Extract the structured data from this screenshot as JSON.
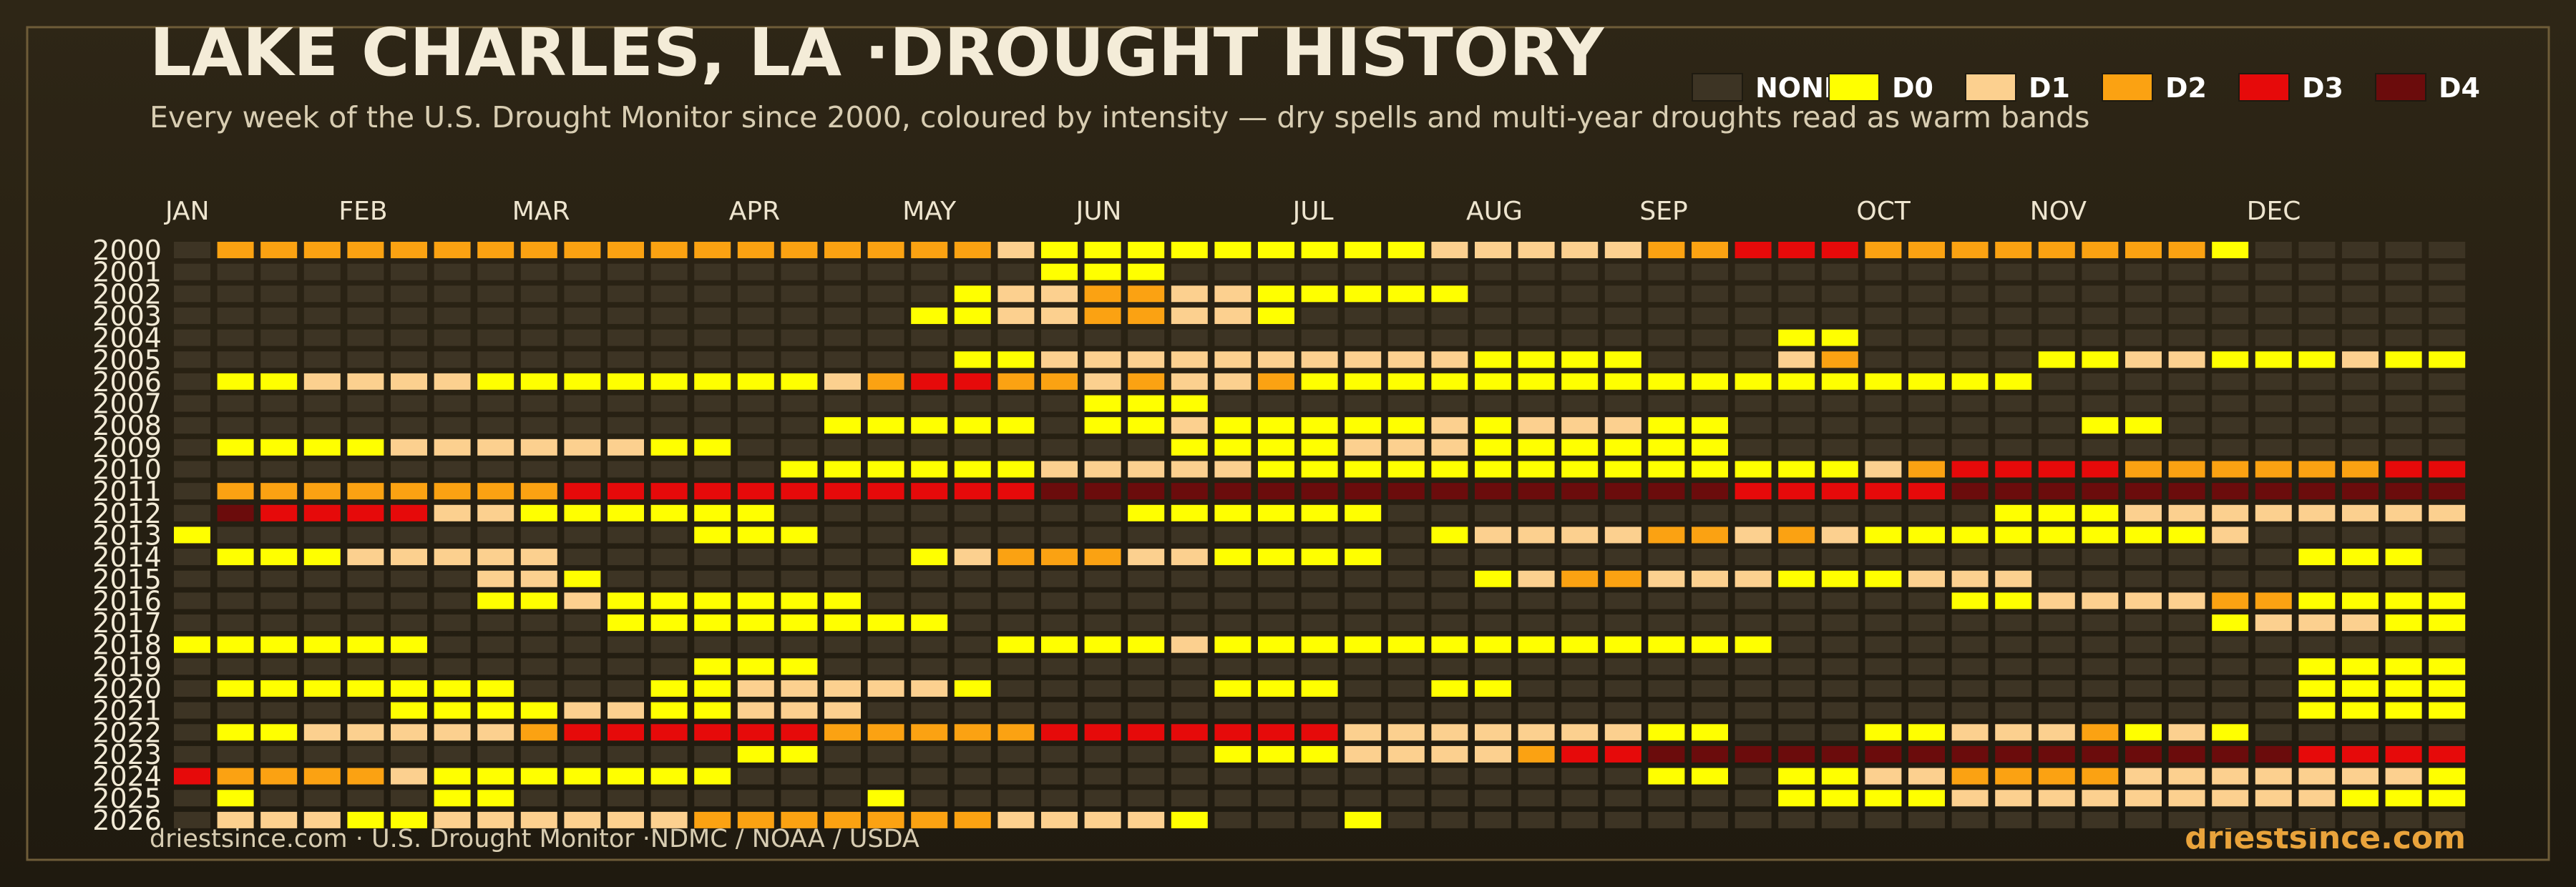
{
  "chart_data": {
    "type": "heatmap",
    "title": "LAKE CHARLES, LA ·DROUGHT HISTORY",
    "subtitle": "Every week of the U.S. Drought Monitor since 2000, coloured by intensity — dry spells and multi-year droughts read as warm bands",
    "source": "driestsince.com  · U.S. Drought Monitor ·NDMC / NOAA / USDA",
    "brand": "driestsince.com",
    "levels": [
      {
        "name": "NONE",
        "color": "#3d3424"
      },
      {
        "name": "D0",
        "color": "#ffff00"
      },
      {
        "name": "D1",
        "color": "#fcd08f"
      },
      {
        "name": "D2",
        "color": "#fba212"
      },
      {
        "name": "D3",
        "color": "#e60a0a"
      },
      {
        "name": "D4",
        "color": "#6b0c0c"
      }
    ],
    "x": [
      "JAN",
      null,
      null,
      null,
      "FEB",
      null,
      null,
      null,
      "MAR",
      null,
      null,
      null,
      null,
      "APR",
      null,
      null,
      null,
      "MAY",
      null,
      null,
      null,
      "JUN",
      null,
      null,
      null,
      null,
      "JUL",
      null,
      null,
      null,
      "AUG",
      null,
      null,
      null,
      "SEP",
      null,
      null,
      null,
      null,
      "OCT",
      null,
      null,
      null,
      "NOV",
      null,
      null,
      null,
      null,
      "DEC",
      null,
      null,
      null,
      null
    ],
    "y": [
      "2000",
      "2001",
      "2002",
      "2003",
      "2004",
      "2005",
      "2006",
      "2007",
      "2008",
      "2009",
      "2010",
      "2011",
      "2012",
      "2013",
      "2014",
      "2015",
      "2016",
      "2017",
      "2018",
      "2019",
      "2020",
      "2021",
      "2022",
      "2023",
      "2024",
      "2025",
      "2026"
    ],
    "values": [
      [
        0,
        3,
        3,
        3,
        3,
        3,
        3,
        3,
        3,
        3,
        3,
        3,
        3,
        3,
        3,
        3,
        3,
        3,
        3,
        2,
        1,
        1,
        1,
        1,
        1,
        1,
        1,
        1,
        1,
        2,
        2,
        2,
        2,
        2,
        3,
        3,
        4,
        4,
        4,
        3,
        3,
        3,
        3,
        3,
        3,
        3,
        3,
        1,
        0,
        0,
        0,
        0,
        0
      ],
      [
        0,
        0,
        0,
        0,
        0,
        0,
        0,
        0,
        0,
        0,
        0,
        0,
        0,
        0,
        0,
        0,
        0,
        0,
        0,
        0,
        1,
        1,
        1,
        0,
        0,
        0,
        0,
        0,
        0,
        0,
        0,
        0,
        0,
        0,
        0,
        0,
        0,
        0,
        0,
        0,
        0,
        0,
        0,
        0,
        0,
        0,
        0,
        0,
        0,
        0,
        0,
        0,
        0
      ],
      [
        0,
        0,
        0,
        0,
        0,
        0,
        0,
        0,
        0,
        0,
        0,
        0,
        0,
        0,
        0,
        0,
        0,
        0,
        1,
        2,
        2,
        3,
        3,
        2,
        2,
        1,
        1,
        1,
        1,
        1,
        0,
        0,
        0,
        0,
        0,
        0,
        0,
        0,
        0,
        0,
        0,
        0,
        0,
        0,
        0,
        0,
        0,
        0,
        0,
        0,
        0,
        0,
        0
      ],
      [
        0,
        0,
        0,
        0,
        0,
        0,
        0,
        0,
        0,
        0,
        0,
        0,
        0,
        0,
        0,
        0,
        0,
        1,
        1,
        2,
        2,
        3,
        3,
        2,
        2,
        1,
        0,
        0,
        0,
        0,
        0,
        0,
        0,
        0,
        0,
        0,
        0,
        0,
        0,
        0,
        0,
        0,
        0,
        0,
        0,
        0,
        0,
        0,
        0,
        0,
        0,
        0,
        0
      ],
      [
        0,
        0,
        0,
        0,
        0,
        0,
        0,
        0,
        0,
        0,
        0,
        0,
        0,
        0,
        0,
        0,
        0,
        0,
        0,
        0,
        0,
        0,
        0,
        0,
        0,
        0,
        0,
        0,
        0,
        0,
        0,
        0,
        0,
        0,
        0,
        0,
        0,
        1,
        1,
        0,
        0,
        0,
        0,
        0,
        0,
        0,
        0,
        0,
        0,
        0,
        0,
        0,
        0
      ],
      [
        0,
        0,
        0,
        0,
        0,
        0,
        0,
        0,
        0,
        0,
        0,
        0,
        0,
        0,
        0,
        0,
        0,
        0,
        1,
        1,
        2,
        2,
        2,
        2,
        2,
        2,
        2,
        2,
        2,
        2,
        1,
        1,
        1,
        1,
        0,
        0,
        0,
        2,
        3,
        0,
        0,
        0,
        0,
        1,
        1,
        2,
        2,
        1,
        1,
        1,
        2,
        1,
        1
      ],
      [
        0,
        1,
        1,
        2,
        2,
        2,
        2,
        1,
        1,
        1,
        1,
        1,
        1,
        1,
        1,
        2,
        3,
        4,
        4,
        3,
        3,
        2,
        3,
        2,
        2,
        3,
        1,
        1,
        1,
        1,
        1,
        1,
        1,
        1,
        1,
        1,
        1,
        1,
        1,
        1,
        1,
        1,
        1,
        0,
        0,
        0,
        0,
        0,
        0,
        0,
        0,
        0,
        0
      ],
      [
        0,
        0,
        0,
        0,
        0,
        0,
        0,
        0,
        0,
        0,
        0,
        0,
        0,
        0,
        0,
        0,
        0,
        0,
        0,
        0,
        0,
        1,
        1,
        1,
        0,
        0,
        0,
        0,
        0,
        0,
        0,
        0,
        0,
        0,
        0,
        0,
        0,
        0,
        0,
        0,
        0,
        0,
        0,
        0,
        0,
        0,
        0,
        0,
        0,
        0,
        0,
        0,
        0
      ],
      [
        0,
        0,
        0,
        0,
        0,
        0,
        0,
        0,
        0,
        0,
        0,
        0,
        0,
        0,
        0,
        1,
        1,
        1,
        1,
        1,
        0,
        1,
        1,
        2,
        1,
        1,
        1,
        1,
        1,
        2,
        1,
        2,
        2,
        2,
        1,
        1,
        0,
        0,
        0,
        0,
        0,
        0,
        0,
        0,
        1,
        1,
        0,
        0,
        0,
        0,
        0,
        0,
        0
      ],
      [
        0,
        1,
        1,
        1,
        1,
        2,
        2,
        2,
        2,
        2,
        2,
        1,
        1,
        0,
        0,
        0,
        0,
        0,
        0,
        0,
        0,
        0,
        0,
        1,
        1,
        1,
        1,
        2,
        2,
        2,
        1,
        1,
        1,
        1,
        1,
        1,
        0,
        0,
        0,
        0,
        0,
        0,
        0,
        0,
        0,
        0,
        0,
        0,
        0,
        0,
        0,
        0,
        0
      ],
      [
        0,
        0,
        0,
        0,
        0,
        0,
        0,
        0,
        0,
        0,
        0,
        0,
        0,
        0,
        1,
        1,
        1,
        1,
        1,
        1,
        2,
        2,
        2,
        2,
        2,
        1,
        1,
        1,
        1,
        1,
        1,
        1,
        1,
        1,
        1,
        1,
        1,
        1,
        1,
        2,
        3,
        4,
        4,
        4,
        4,
        3,
        3,
        3,
        3,
        3,
        3,
        4,
        4
      ],
      [
        0,
        3,
        3,
        3,
        3,
        3,
        3,
        3,
        3,
        4,
        4,
        4,
        4,
        4,
        4,
        4,
        4,
        4,
        4,
        4,
        5,
        5,
        5,
        5,
        5,
        5,
        5,
        5,
        5,
        5,
        5,
        5,
        5,
        5,
        5,
        5,
        4,
        4,
        4,
        4,
        4,
        5,
        5,
        5,
        5,
        5,
        5,
        5,
        5,
        5,
        5,
        5,
        5
      ],
      [
        0,
        5,
        4,
        4,
        4,
        4,
        2,
        2,
        1,
        1,
        1,
        1,
        1,
        1,
        0,
        0,
        0,
        0,
        0,
        0,
        0,
        0,
        1,
        1,
        1,
        1,
        1,
        1,
        0,
        0,
        0,
        0,
        0,
        0,
        0,
        0,
        0,
        0,
        0,
        0,
        0,
        0,
        1,
        1,
        1,
        2,
        2,
        2,
        2,
        2,
        2,
        2,
        2
      ],
      [
        1,
        0,
        0,
        0,
        0,
        0,
        0,
        0,
        0,
        0,
        0,
        0,
        1,
        1,
        1,
        0,
        0,
        0,
        0,
        0,
        0,
        0,
        0,
        0,
        0,
        0,
        0,
        0,
        0,
        1,
        2,
        2,
        2,
        2,
        3,
        3,
        2,
        3,
        2,
        1,
        1,
        1,
        1,
        1,
        1,
        1,
        1,
        2,
        0,
        0,
        0,
        0,
        0
      ],
      [
        0,
        1,
        1,
        1,
        2,
        2,
        2,
        2,
        2,
        0,
        0,
        0,
        0,
        0,
        0,
        0,
        0,
        1,
        2,
        3,
        3,
        3,
        2,
        2,
        1,
        1,
        1,
        1,
        0,
        0,
        0,
        0,
        0,
        0,
        0,
        0,
        0,
        0,
        0,
        0,
        0,
        0,
        0,
        0,
        0,
        0,
        0,
        0,
        0,
        1,
        1,
        1,
        0
      ],
      [
        0,
        0,
        0,
        0,
        0,
        0,
        0,
        2,
        2,
        1,
        0,
        0,
        0,
        0,
        0,
        0,
        0,
        0,
        0,
        0,
        0,
        0,
        0,
        0,
        0,
        0,
        0,
        0,
        0,
        0,
        1,
        2,
        3,
        3,
        2,
        2,
        2,
        1,
        1,
        1,
        2,
        2,
        2,
        0,
        0,
        0,
        0,
        0,
        0,
        0,
        0,
        0,
        0
      ],
      [
        0,
        0,
        0,
        0,
        0,
        0,
        0,
        1,
        1,
        2,
        1,
        1,
        1,
        1,
        1,
        1,
        0,
        0,
        0,
        0,
        0,
        0,
        0,
        0,
        0,
        0,
        0,
        0,
        0,
        0,
        0,
        0,
        0,
        0,
        0,
        0,
        0,
        0,
        0,
        0,
        0,
        1,
        1,
        2,
        2,
        2,
        2,
        3,
        3,
        1,
        1,
        1,
        1
      ],
      [
        0,
        0,
        0,
        0,
        0,
        0,
        0,
        0,
        0,
        0,
        1,
        1,
        1,
        1,
        1,
        1,
        1,
        1,
        0,
        0,
        0,
        0,
        0,
        0,
        0,
        0,
        0,
        0,
        0,
        0,
        0,
        0,
        0,
        0,
        0,
        0,
        0,
        0,
        0,
        0,
        0,
        0,
        0,
        0,
        0,
        0,
        0,
        1,
        2,
        2,
        2,
        1,
        1
      ],
      [
        1,
        1,
        1,
        1,
        1,
        1,
        0,
        0,
        0,
        0,
        0,
        0,
        0,
        0,
        0,
        0,
        0,
        0,
        0,
        1,
        1,
        1,
        1,
        2,
        1,
        1,
        1,
        1,
        1,
        1,
        1,
        1,
        1,
        1,
        1,
        1,
        1,
        0,
        0,
        0,
        0,
        0,
        0,
        0,
        0,
        0,
        0,
        0,
        0,
        0,
        0,
        0,
        0
      ],
      [
        0,
        0,
        0,
        0,
        0,
        0,
        0,
        0,
        0,
        0,
        0,
        0,
        1,
        1,
        1,
        0,
        0,
        0,
        0,
        0,
        0,
        0,
        0,
        0,
        0,
        0,
        0,
        0,
        0,
        0,
        0,
        0,
        0,
        0,
        0,
        0,
        0,
        0,
        0,
        0,
        0,
        0,
        0,
        0,
        0,
        0,
        0,
        0,
        0,
        1,
        1,
        1,
        1
      ],
      [
        0,
        1,
        1,
        1,
        1,
        1,
        1,
        1,
        0,
        0,
        0,
        1,
        1,
        2,
        2,
        2,
        2,
        2,
        1,
        0,
        0,
        0,
        0,
        0,
        1,
        1,
        1,
        0,
        0,
        1,
        1,
        0,
        0,
        0,
        0,
        0,
        0,
        0,
        0,
        0,
        0,
        0,
        0,
        0,
        0,
        0,
        0,
        0,
        0,
        1,
        1,
        1,
        1
      ],
      [
        0,
        0,
        0,
        0,
        0,
        1,
        1,
        1,
        1,
        2,
        2,
        1,
        1,
        2,
        2,
        2,
        0,
        0,
        0,
        0,
        0,
        0,
        0,
        0,
        0,
        0,
        0,
        0,
        0,
        0,
        0,
        0,
        0,
        0,
        0,
        0,
        0,
        0,
        0,
        0,
        0,
        0,
        0,
        0,
        0,
        0,
        0,
        0,
        0,
        1,
        1,
        1,
        1
      ],
      [
        0,
        1,
        1,
        2,
        2,
        2,
        2,
        2,
        3,
        4,
        4,
        4,
        4,
        4,
        4,
        3,
        3,
        3,
        3,
        3,
        4,
        4,
        4,
        4,
        4,
        4,
        4,
        2,
        2,
        2,
        2,
        2,
        2,
        2,
        1,
        1,
        0,
        0,
        0,
        1,
        1,
        2,
        2,
        2,
        3,
        1,
        2,
        1,
        0,
        0,
        0,
        0,
        0
      ],
      [
        0,
        0,
        0,
        0,
        0,
        0,
        0,
        0,
        0,
        0,
        0,
        0,
        0,
        1,
        1,
        0,
        0,
        0,
        0,
        0,
        0,
        0,
        0,
        0,
        1,
        1,
        1,
        2,
        2,
        2,
        2,
        3,
        4,
        4,
        5,
        5,
        5,
        5,
        5,
        5,
        5,
        5,
        5,
        5,
        5,
        5,
        5,
        5,
        5,
        4,
        4,
        4,
        4
      ],
      [
        4,
        3,
        3,
        3,
        3,
        2,
        1,
        1,
        1,
        1,
        1,
        1,
        1,
        0,
        0,
        0,
        0,
        0,
        0,
        0,
        0,
        0,
        0,
        0,
        0,
        0,
        0,
        0,
        0,
        0,
        0,
        0,
        0,
        0,
        1,
        1,
        0,
        1,
        1,
        2,
        2,
        3,
        3,
        3,
        3,
        2,
        2,
        2,
        2,
        2,
        2,
        2,
        1
      ],
      [
        0,
        1,
        0,
        0,
        0,
        0,
        1,
        1,
        0,
        0,
        0,
        0,
        0,
        0,
        0,
        0,
        1,
        0,
        0,
        0,
        0,
        0,
        0,
        0,
        0,
        0,
        0,
        0,
        0,
        0,
        0,
        0,
        0,
        0,
        0,
        0,
        0,
        1,
        1,
        1,
        1,
        2,
        2,
        2,
        2,
        2,
        2,
        2,
        2,
        2,
        1,
        1,
        1
      ],
      [
        0,
        2,
        2,
        2,
        1,
        1,
        2,
        2,
        2,
        2,
        2,
        2,
        3,
        3,
        3,
        3,
        3,
        3,
        3,
        2,
        2,
        2,
        2,
        1,
        0,
        0,
        0,
        1,
        0,
        0,
        0,
        0,
        0,
        0,
        0,
        0,
        0,
        0,
        0,
        0,
        0,
        0,
        0,
        0,
        0,
        0,
        0,
        0,
        0,
        0,
        0,
        0,
        0
      ]
    ]
  }
}
